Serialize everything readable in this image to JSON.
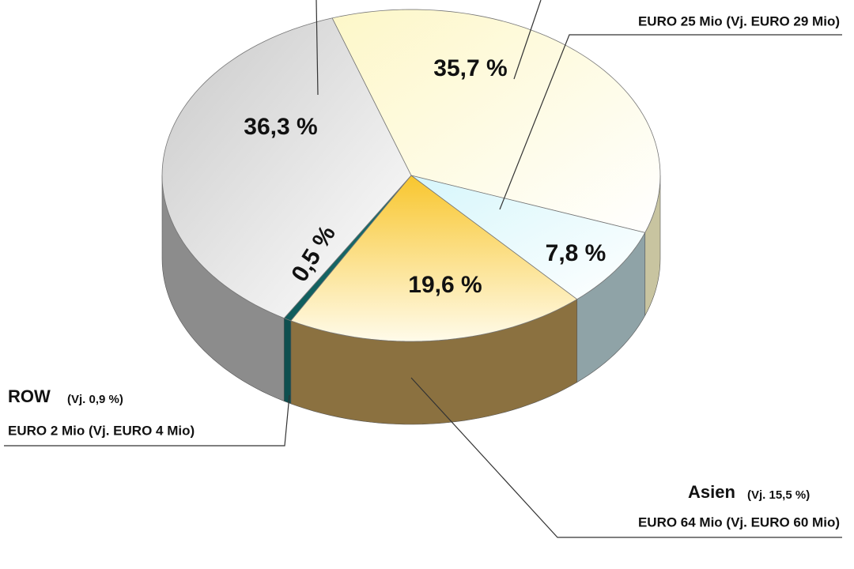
{
  "chart_data": {
    "type": "pie",
    "categories": [
      null,
      null,
      "Asien",
      "ROW",
      null
    ],
    "values": [
      35.7,
      7.8,
      19.6,
      0.5,
      36.3
    ],
    "value_labels": [
      "35,7 %",
      "7,8 %",
      "19,6 %",
      "0,5 %",
      "36,3 %"
    ],
    "previous": [
      null,
      null,
      "(Vj. 15,5 %)",
      "(Vj. 0,9 %)",
      null
    ],
    "amounts": [
      null,
      "EURO 25 Mio (Vj. EURO 29 Mio)",
      "EURO 64 Mio  (Vj. EURO 60 Mio)",
      "EURO 2 Mio  (Vj. EURO 4 Mio)",
      null
    ],
    "colors": [
      "#fdf9d8",
      "#e4fafd",
      "#f8c62e",
      "#0f5c5c",
      "#cdcdcd"
    ]
  }
}
